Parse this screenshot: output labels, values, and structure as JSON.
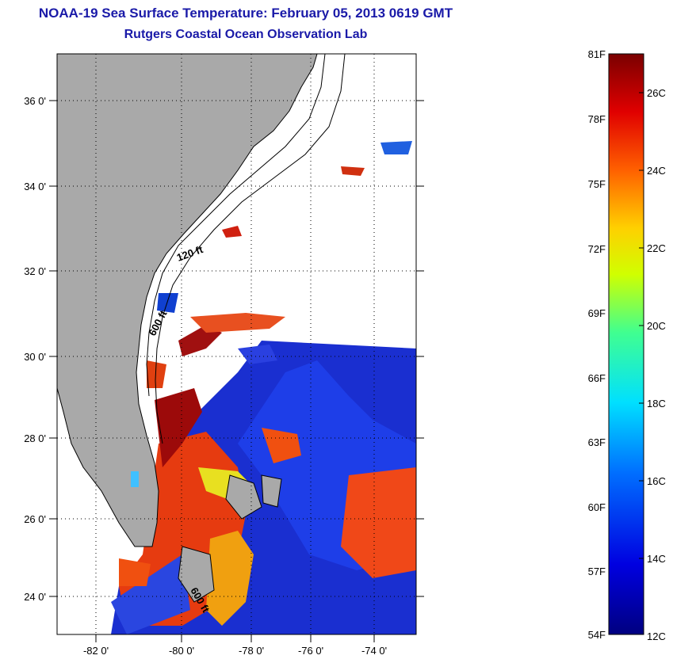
{
  "title": "NOAA-19 Sea Surface Temperature:  February 05, 2013 0619 GMT",
  "subtitle": "Rutgers Coastal Ocean Observation Lab",
  "map": {
    "lat_labels": [
      "36 0'",
      "34 0'",
      "32 0'",
      "30 0'",
      "28 0'",
      "26 0'",
      "24 0'"
    ],
    "lon_labels": [
      "-82 0'",
      "-80 0'",
      "-78 0'",
      "-76 0'",
      "-74 0'"
    ],
    "lat_range": [
      23,
      37
    ],
    "lon_range": [
      -83.2,
      -72.9
    ],
    "contours": [
      "120 ft",
      "600 ft",
      "600 ft"
    ],
    "colors": {
      "land": "#a9a9a9",
      "cloud": "#ffffff",
      "frame": "#000000"
    }
  },
  "colorbar": {
    "fahrenheit": [
      "81F",
      "78F",
      "75F",
      "72F",
      "69F",
      "66F",
      "63F",
      "60F",
      "57F",
      "54F"
    ],
    "celsius": [
      "26C",
      "24C",
      "22C",
      "20C",
      "18C",
      "16C",
      "14C",
      "12C"
    ],
    "range_c": [
      12,
      27
    ]
  }
}
